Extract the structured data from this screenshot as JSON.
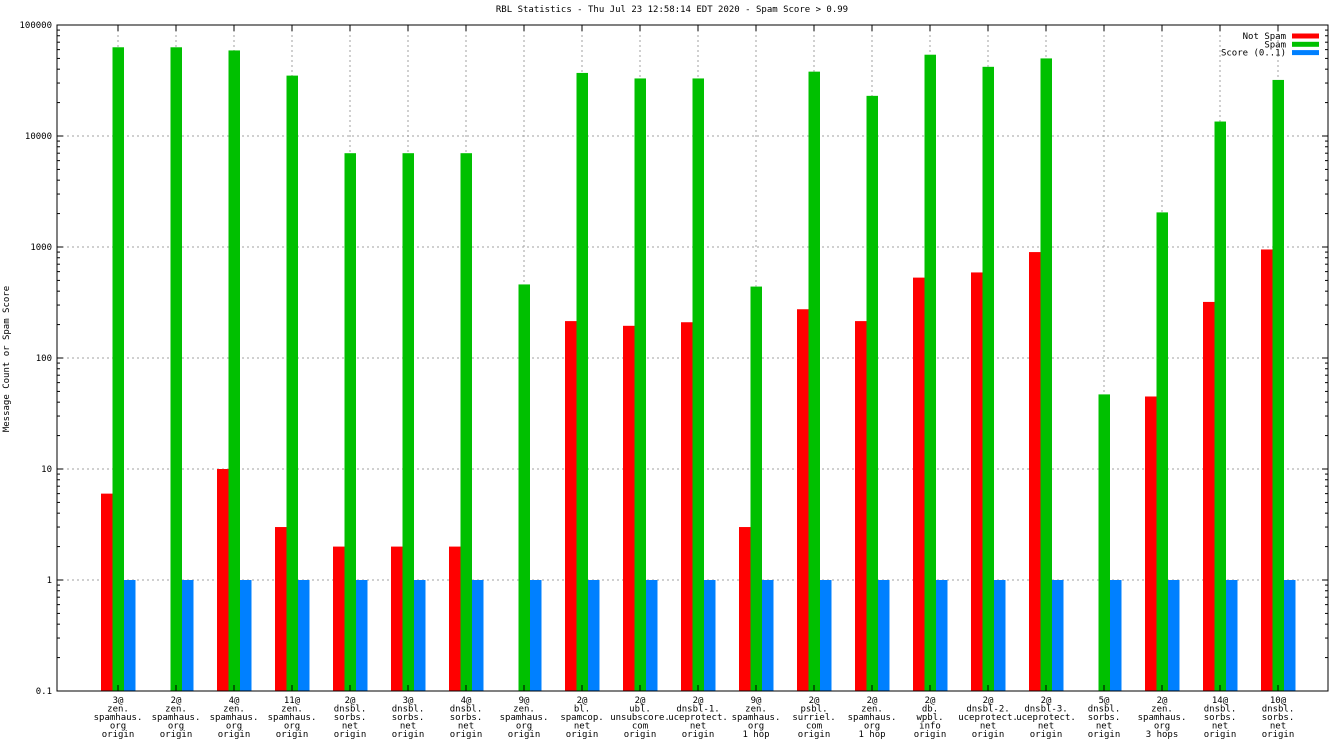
{
  "chart_data": {
    "type": "bar",
    "title": "RBL Statistics - Thu Jul 23 12:58:14 EDT 2020 - Spam Score > 0.99",
    "xlabel": "",
    "ylabel": "Message Count or Spam Score",
    "yscale": "log",
    "ylim": [
      0.1,
      100000
    ],
    "yticks": [
      "0.1",
      "1",
      "10",
      "100",
      "1000",
      "10000",
      "100000"
    ],
    "grid": true,
    "legend_position": "top-right",
    "categories": [
      [
        "3@",
        "zen.",
        "spamhaus.",
        "org",
        "origin"
      ],
      [
        "2@",
        "zen.",
        "spamhaus.",
        "org",
        "origin"
      ],
      [
        "4@",
        "zen.",
        "spamhaus.",
        "org",
        "origin"
      ],
      [
        "11@",
        "zen.",
        "spamhaus.",
        "org",
        "origin"
      ],
      [
        "2@",
        "dnsbl.",
        "sorbs.",
        "net",
        "origin"
      ],
      [
        "3@",
        "dnsbl.",
        "sorbs.",
        "net",
        "origin"
      ],
      [
        "4@",
        "dnsbl.",
        "sorbs.",
        "net",
        "origin"
      ],
      [
        "9@",
        "zen.",
        "spamhaus.",
        "org",
        "origin"
      ],
      [
        "2@",
        "bl.",
        "spamcop.",
        "net",
        "origin"
      ],
      [
        "2@",
        "ubl.",
        "unsubscore.",
        "com",
        "origin"
      ],
      [
        "2@",
        "dnsbl-1.",
        "uceprotect.",
        "net",
        "origin"
      ],
      [
        "9@",
        "zen.",
        "spamhaus.",
        "org",
        "1 hop"
      ],
      [
        "2@",
        "psbl.",
        "surriel.",
        "com",
        "origin"
      ],
      [
        "2@",
        "zen.",
        "spamhaus.",
        "org",
        "1 hop"
      ],
      [
        "2@",
        "db.",
        "wpbl.",
        "info",
        "origin"
      ],
      [
        "2@",
        "dnsbl-2.",
        "uceprotect.",
        "net",
        "origin"
      ],
      [
        "2@",
        "dnsbl-3.",
        "uceprotect.",
        "net",
        "origin"
      ],
      [
        "5@",
        "dnsbl.",
        "sorbs.",
        "net",
        "origin"
      ],
      [
        "2@",
        "zen.",
        "spamhaus.",
        "org",
        "3 hops"
      ],
      [
        "14@",
        "dnsbl.",
        "sorbs.",
        "net",
        "origin"
      ],
      [
        "10@",
        "dnsbl.",
        "sorbs.",
        "net",
        "origin"
      ]
    ],
    "series": [
      {
        "name": "Not Spam",
        "color": "#ff0000",
        "values": [
          6,
          null,
          10,
          3,
          2,
          2,
          2,
          null,
          215,
          195,
          210,
          3,
          275,
          215,
          530,
          590,
          900,
          null,
          45,
          320,
          950
        ]
      },
      {
        "name": "Spam",
        "color": "#00c000",
        "values": [
          63000,
          63000,
          59000,
          35000,
          7000,
          7000,
          7000,
          460,
          37000,
          33000,
          33000,
          440,
          38000,
          23000,
          54000,
          42000,
          50000,
          47,
          2050,
          13500,
          32000
        ]
      },
      {
        "name": "Score (0..1)",
        "color": "#0080ff",
        "values": [
          1,
          1,
          1,
          1,
          1,
          1,
          1,
          1,
          1,
          1,
          1,
          1,
          1,
          1,
          1,
          1,
          1,
          1,
          1,
          1,
          1
        ]
      }
    ]
  }
}
